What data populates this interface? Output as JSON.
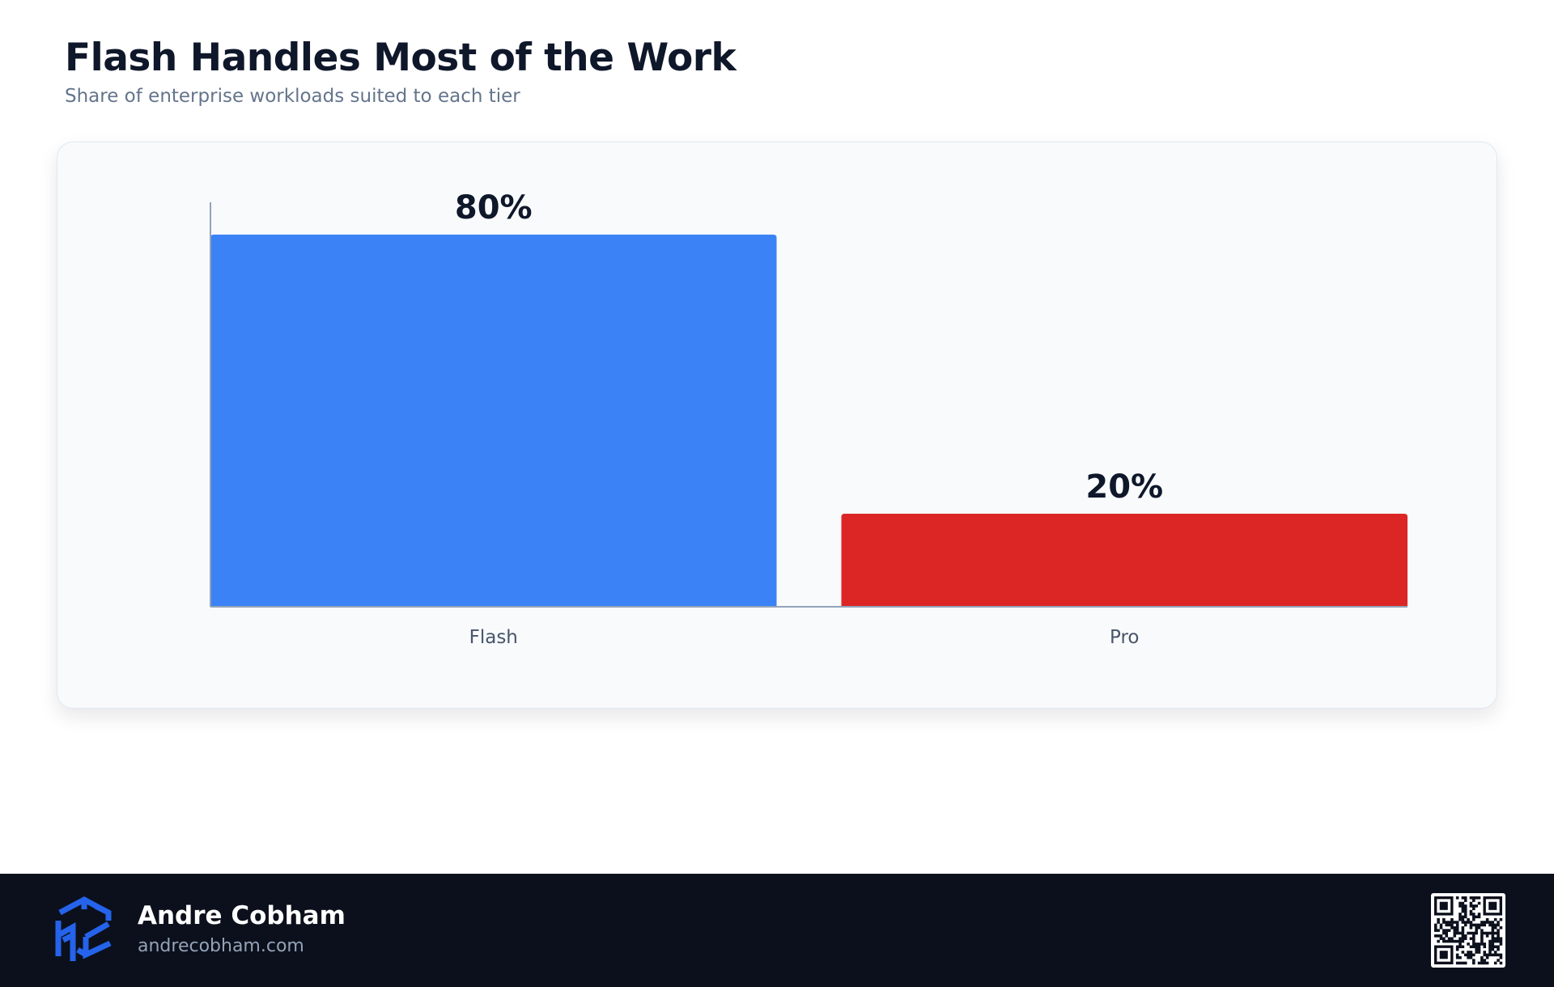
{
  "header": {
    "title": "Flash Handles Most of the Work",
    "subtitle": "Share of enterprise workloads suited to each tier"
  },
  "chart_data": {
    "type": "bar",
    "title": "Flash Handles Most of the Work",
    "subtitle": "Share of enterprise workloads suited to each tier",
    "categories": [
      "Flash",
      "Pro"
    ],
    "values": [
      80,
      20
    ],
    "value_labels": [
      "80%",
      "20%"
    ],
    "colors": [
      "#3b82f6",
      "#dc2626"
    ],
    "xlabel": "",
    "ylabel": "",
    "ylim": [
      0,
      80
    ],
    "grid": false,
    "legend": "none"
  },
  "footer": {
    "author_name": "Andre Cobham",
    "author_site": "andrecobham.com",
    "logo_icon": "cube-logo-icon",
    "qr_icon": "qr-code-icon",
    "logo_color": "#2563eb"
  }
}
